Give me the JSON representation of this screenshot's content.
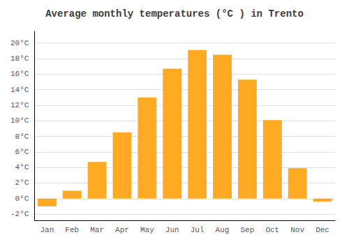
{
  "chart_data": {
    "type": "bar",
    "title": "Average monthly temperatures (°C ) in Trento",
    "categories": [
      "Jan",
      "Feb",
      "Mar",
      "Apr",
      "May",
      "Jun",
      "Jul",
      "Aug",
      "Sep",
      "Oct",
      "Nov",
      "Dec"
    ],
    "values": [
      -1.0,
      1.0,
      4.7,
      8.5,
      13.0,
      16.7,
      19.1,
      18.5,
      15.3,
      10.1,
      3.9,
      -0.4
    ],
    "color": "#FFAA22",
    "ylim": [
      -2.8,
      21.5
    ],
    "yticks": [
      {
        "value": -2,
        "label": "-2°C"
      },
      {
        "value": 0,
        "label": "0°C"
      },
      {
        "value": 2,
        "label": "2°C"
      },
      {
        "value": 4,
        "label": "4°C"
      },
      {
        "value": 6,
        "label": "6°C"
      },
      {
        "value": 8,
        "label": "8°C"
      },
      {
        "value": 10,
        "label": "10°C"
      },
      {
        "value": 12,
        "label": "12°C"
      },
      {
        "value": 14,
        "label": "14°C"
      },
      {
        "value": 16,
        "label": "16°C"
      },
      {
        "value": 18,
        "label": "18°C"
      },
      {
        "value": 20,
        "label": "20°C"
      }
    ],
    "grid": true
  }
}
